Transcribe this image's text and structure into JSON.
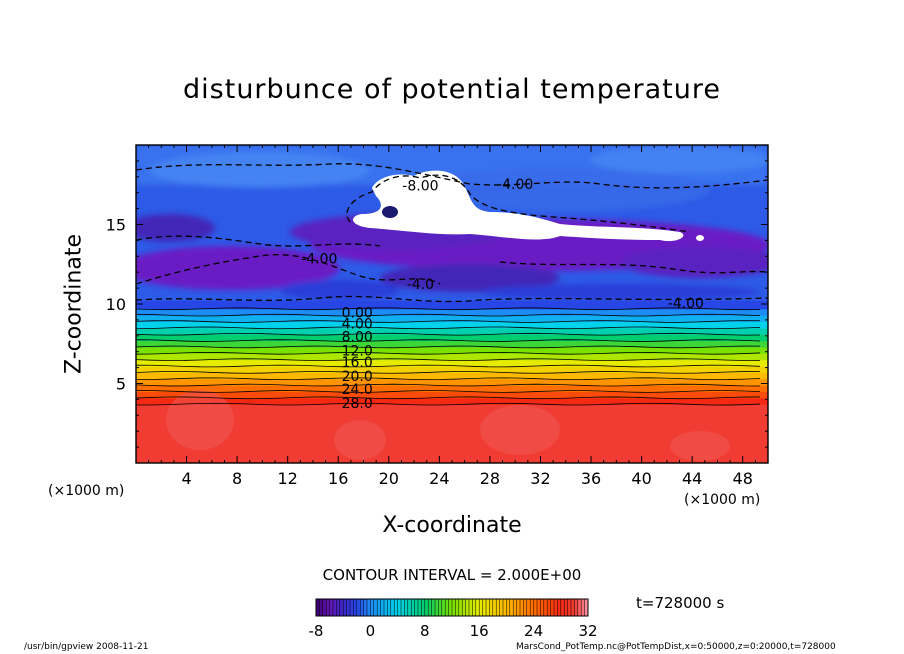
{
  "chart_data": {
    "type": "heatmap",
    "title": "disturbunce of potential temperature",
    "xlabel": "X-coordinate",
    "ylabel": "Z-coordinate",
    "x_unit_left": "(×1000 m)",
    "x_unit_right": "(×1000 m)",
    "xlim": [
      0,
      50
    ],
    "ylim": [
      0,
      20
    ],
    "x_ticks": [
      4,
      8,
      12,
      16,
      20,
      24,
      28,
      32,
      36,
      40,
      44,
      48
    ],
    "y_ticks": [
      5,
      10,
      15
    ],
    "contour_interval_text": "CONTOUR INTERVAL = 2.000E+00",
    "time_text": "t=728000  s",
    "contour_labels": [
      {
        "text": "-8.00",
        "x": 22.5,
        "y": 17.4
      },
      {
        "text": "-4.00",
        "x": 30.0,
        "y": 17.5
      },
      {
        "text": "-4.00",
        "x": 14.5,
        "y": 12.8
      },
      {
        "text": "-4.00",
        "x": 43.5,
        "y": 10.0
      },
      {
        "text": "-4.0",
        "x": 22.5,
        "y": 11.2
      },
      {
        "text": "0.00",
        "x": 17.5,
        "y": 9.4
      },
      {
        "text": "4.00",
        "x": 17.5,
        "y": 8.7
      },
      {
        "text": "8.00",
        "x": 17.5,
        "y": 7.9
      },
      {
        "text": "12.0",
        "x": 17.5,
        "y": 7.0
      },
      {
        "text": "16.0",
        "x": 17.5,
        "y": 6.3
      },
      {
        "text": "20.0",
        "x": 17.5,
        "y": 5.4
      },
      {
        "text": "24.0",
        "x": 17.5,
        "y": 4.6
      },
      {
        "text": "28.0",
        "x": 17.5,
        "y": 3.7
      }
    ],
    "temperature_bands": [
      {
        "z0": 0.0,
        "z1": 3.7,
        "value": 30
      },
      {
        "z0": 3.7,
        "z1": 4.1,
        "value": 28
      },
      {
        "z0": 4.1,
        "z1": 4.5,
        "value": 26
      },
      {
        "z0": 4.5,
        "z1": 4.9,
        "value": 24
      },
      {
        "z0": 4.9,
        "z1": 5.3,
        "value": 22
      },
      {
        "z0": 5.3,
        "z1": 5.7,
        "value": 20
      },
      {
        "z0": 5.7,
        "z1": 6.1,
        "value": 18
      },
      {
        "z0": 6.1,
        "z1": 6.5,
        "value": 16
      },
      {
        "z0": 6.5,
        "z1": 6.9,
        "value": 14
      },
      {
        "z0": 6.9,
        "z1": 7.3,
        "value": 12
      },
      {
        "z0": 7.3,
        "z1": 7.7,
        "value": 10
      },
      {
        "z0": 7.7,
        "z1": 8.1,
        "value": 8
      },
      {
        "z0": 8.1,
        "z1": 8.5,
        "value": 6
      },
      {
        "z0": 8.5,
        "z1": 8.9,
        "value": 4
      },
      {
        "z0": 8.9,
        "z1": 9.3,
        "value": 2
      },
      {
        "z0": 9.3,
        "z1": 9.7,
        "value": 0
      },
      {
        "z0": 9.7,
        "z1": 10.2,
        "value": -2
      }
    ],
    "colorbar": {
      "min": -8,
      "max": 32,
      "tick_labels": [
        "-8",
        "0",
        "8",
        "16",
        "24",
        "32"
      ],
      "tick_values": [
        -8,
        0,
        8,
        16,
        24,
        32
      ]
    }
  },
  "footer": {
    "left": "/usr/bin/gpview   2008-11-21",
    "right": "MarsCond_PotTemp.nc@PotTempDist,x=0:50000,z=0:20000,t=728000"
  }
}
